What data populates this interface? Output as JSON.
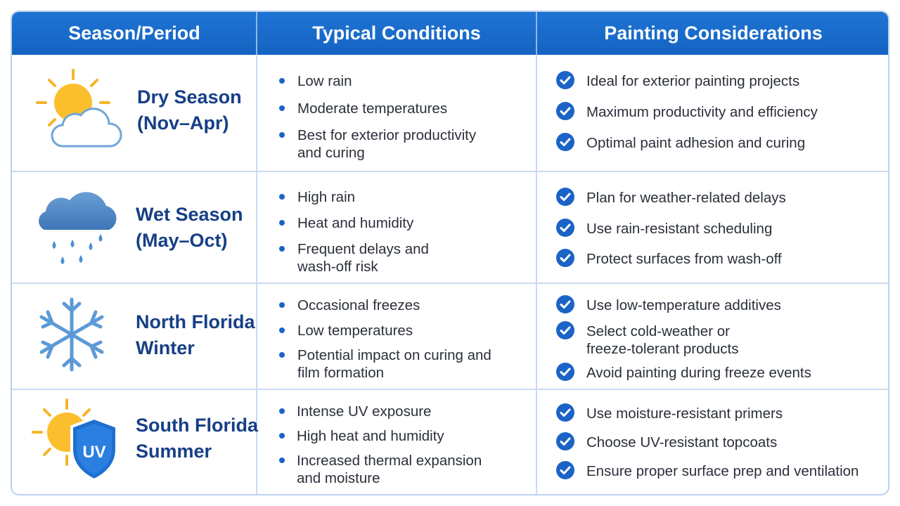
{
  "headers": [
    "Season/Period",
    "Typical Conditions",
    "Painting Considerations"
  ],
  "colors": {
    "header": "#1a6bcc",
    "season_text": "#163f86",
    "bullet": "#1b63c6",
    "check": "#1b63c6"
  },
  "rows": [
    {
      "icon": "sun-cloud-icon",
      "season": [
        "Dry Season",
        "(Nov–Apr)"
      ],
      "conditions": [
        [
          "Low rain"
        ],
        [
          "Moderate temperatures"
        ],
        [
          "Best for exterior productivity",
          "and curing"
        ]
      ],
      "considerations": [
        [
          "Ideal for exterior painting projects"
        ],
        [
          "Maximum productivity and efficiency"
        ],
        [
          "Optimal paint adhesion and curing"
        ]
      ]
    },
    {
      "icon": "rain-cloud-icon",
      "season": [
        "Wet Season",
        "(May–Oct)"
      ],
      "conditions": [
        [
          "High rain"
        ],
        [
          "Heat and humidity"
        ],
        [
          "Frequent delays and",
          "wash-off risk"
        ]
      ],
      "considerations": [
        [
          "Plan for weather-related delays"
        ],
        [
          "Use rain-resistant scheduling"
        ],
        [
          "Protect surfaces from wash-off"
        ]
      ]
    },
    {
      "icon": "snowflake-icon",
      "season": [
        "North Florida",
        "Winter"
      ],
      "conditions": [
        [
          "Occasional freezes"
        ],
        [
          "Low temperatures"
        ],
        [
          "Potential impact on curing and",
          "film formation"
        ]
      ],
      "considerations": [
        [
          "Use low-temperature additives"
        ],
        [
          "Select cold-weather or",
          "freeze-tolerant products"
        ],
        [
          "Avoid painting during freeze events"
        ]
      ]
    },
    {
      "icon": "sun-uv-shield-icon",
      "uv_label": "UV",
      "season": [
        "South Florida",
        "Summer"
      ],
      "conditions": [
        [
          "Intense UV exposure"
        ],
        [
          "High heat and humidity"
        ],
        [
          "Increased thermal expansion",
          "and moisture"
        ]
      ],
      "considerations": [
        [
          "Use moisture-resistant primers"
        ],
        [
          "Choose UV-resistant topcoats"
        ],
        [
          "Ensure proper surface prep and ventilation"
        ]
      ]
    }
  ]
}
